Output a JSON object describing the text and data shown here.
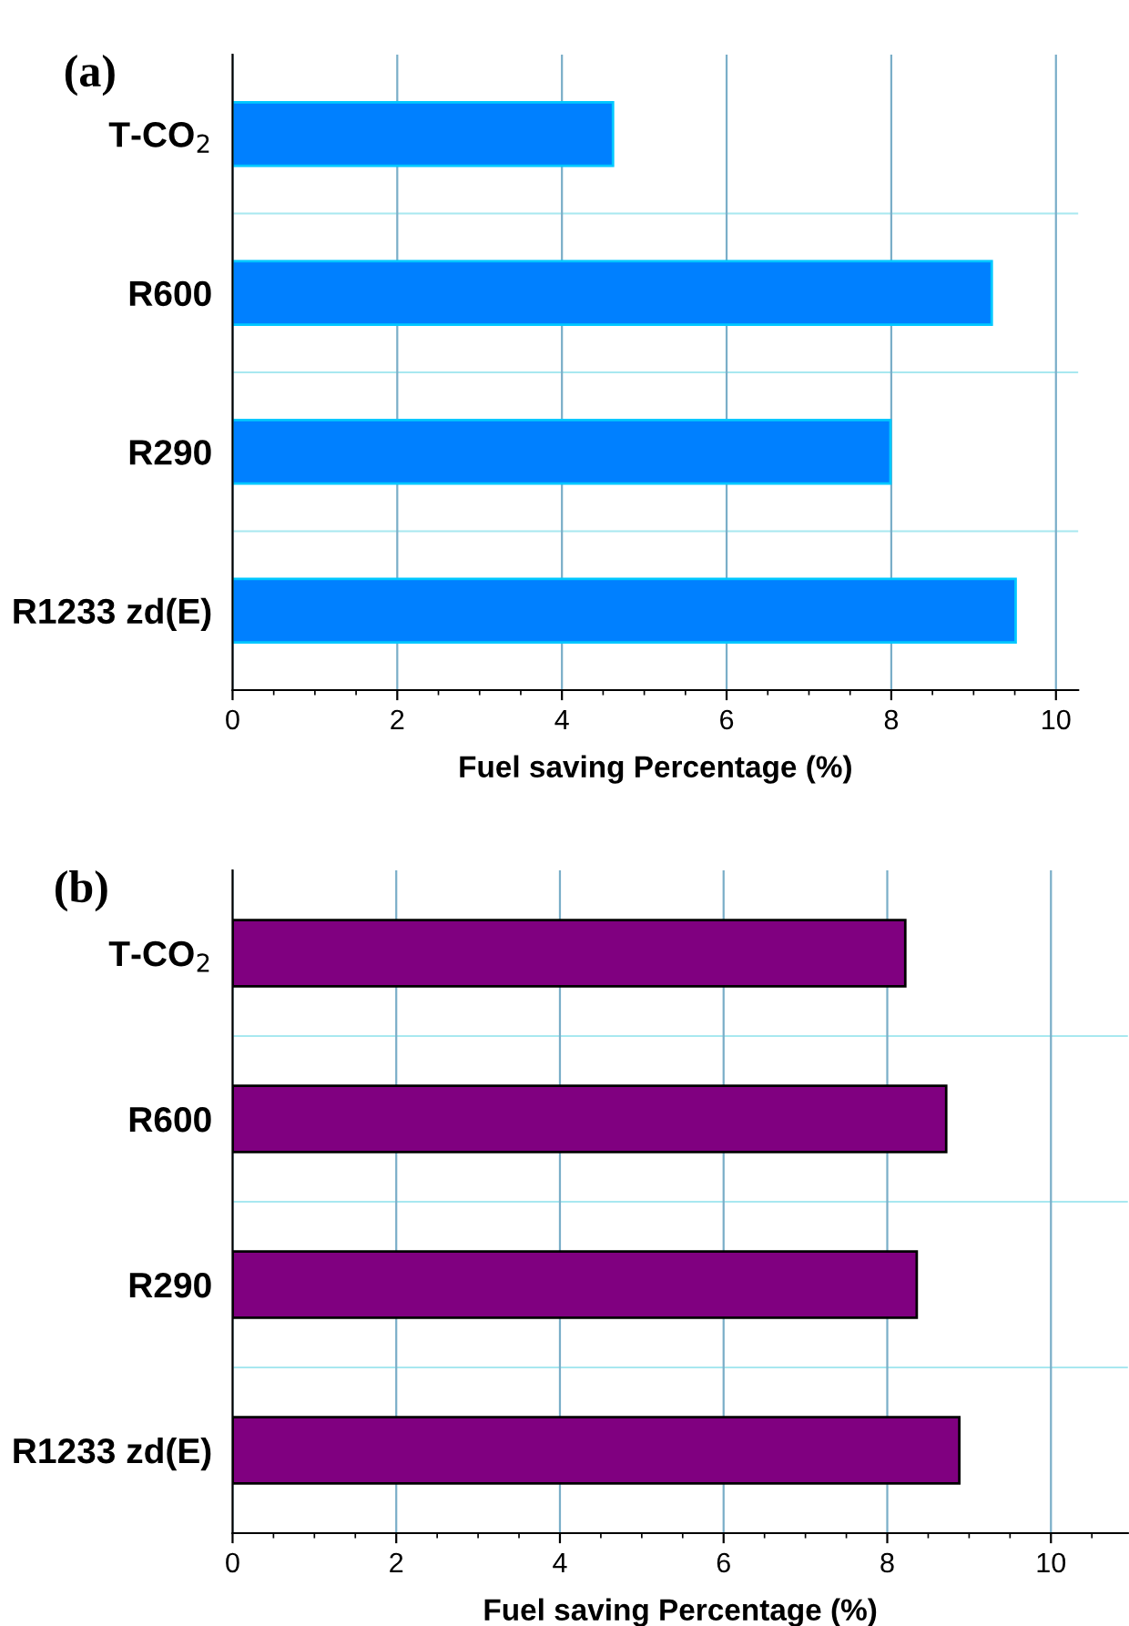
{
  "chart_data": [
    {
      "type": "bar",
      "orientation": "horizontal",
      "title": "(a)",
      "xlabel": "Fuel saving Percentage (%)",
      "categories": [
        "T-CO$_{2}$",
        "R600",
        "R290",
        "R1233 zd(E)"
      ],
      "values": [
        4.62,
        9.22,
        7.99,
        9.51
      ],
      "color": "#0080ff",
      "xlim": [
        0,
        10.27
      ],
      "xticks": [
        0,
        2,
        4,
        6,
        8,
        10
      ],
      "grid": true
    },
    {
      "type": "bar",
      "orientation": "horizontal",
      "title": "(b)",
      "xlabel": "Fuel saving Percentage (%)",
      "categories": [
        "T-CO$_{2}$",
        "R600",
        "R290",
        "R1233 zd(E)"
      ],
      "values": [
        8.22,
        8.72,
        8.36,
        8.88
      ],
      "color": "#800080",
      "xlim": [
        0,
        10.94
      ],
      "xticks": [
        0,
        2,
        4,
        6,
        8,
        10
      ],
      "grid": true
    }
  ]
}
